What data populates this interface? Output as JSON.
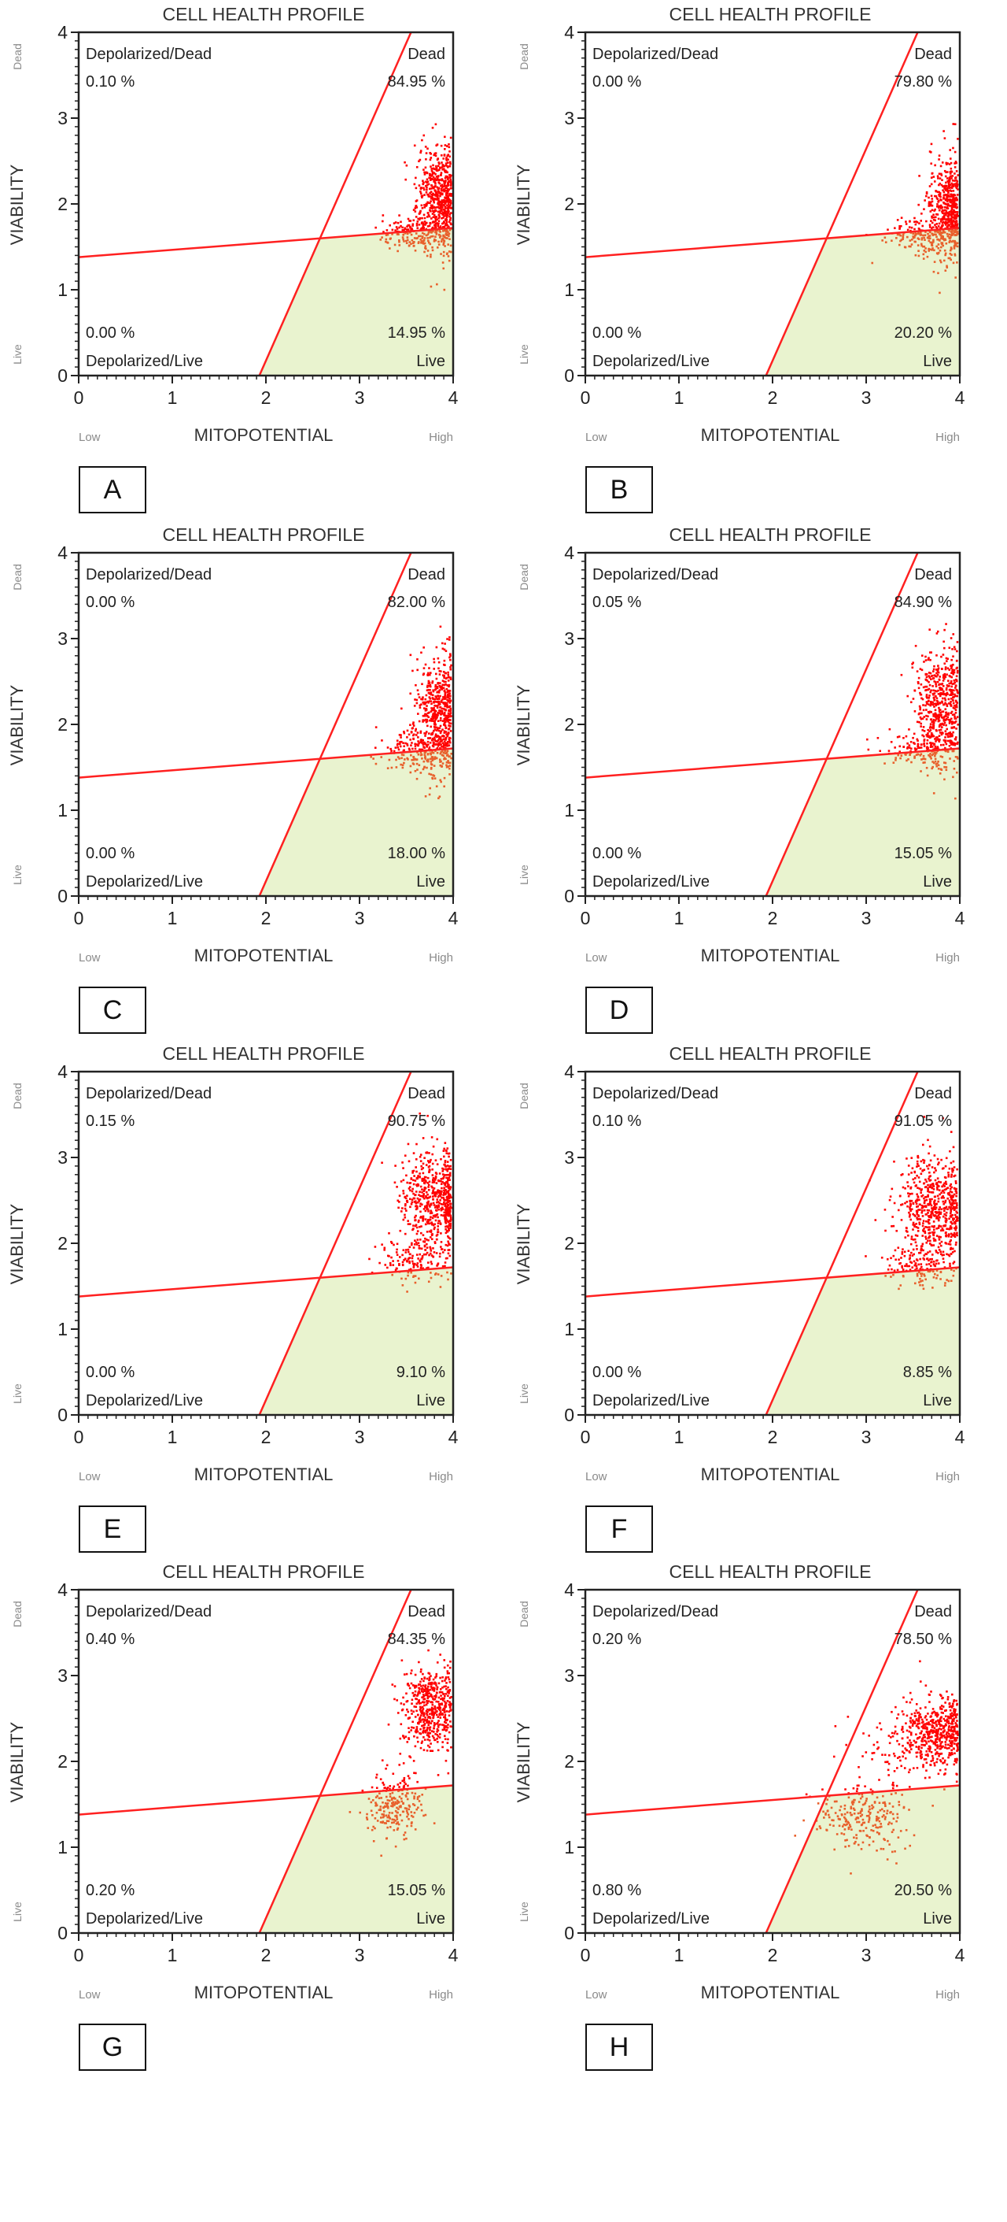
{
  "common": {
    "title": "CELL HEALTH PROFILE",
    "xlabel": "MITOPOTENTIAL",
    "ylabel": "VIABILITY",
    "x_low": "Low",
    "x_high": "High",
    "y_low": "Live",
    "y_high": "Dead",
    "q_tl": "Depolarized/Dead",
    "q_tr": "Dead",
    "q_bl": "Depolarized/Live",
    "q_br": "Live",
    "x_ticks": [
      "0",
      "1",
      "2",
      "3",
      "4"
    ],
    "y_ticks": [
      "0",
      "1",
      "2",
      "3",
      "4"
    ]
  },
  "chart_data": [
    {
      "panel": "A",
      "type": "scatter",
      "xlim": [
        0,
        4
      ],
      "ylim": [
        0,
        4
      ],
      "depolarized_dead": "0.10 %",
      "dead": "84.95 %",
      "depolarized_live": "0.00 %",
      "live": "14.95 %",
      "clusters": [
        {
          "x": 3.85,
          "y": 2.05,
          "sx": 0.12,
          "sy": 0.3,
          "n": 600
        },
        {
          "x": 3.6,
          "y": 1.65,
          "sx": 0.2,
          "sy": 0.1,
          "n": 160
        }
      ]
    },
    {
      "panel": "B",
      "type": "scatter",
      "xlim": [
        0,
        4
      ],
      "ylim": [
        0,
        4
      ],
      "depolarized_dead": "0.00 %",
      "dead": "79.80 %",
      "depolarized_live": "0.00 %",
      "live": "20.20 %",
      "clusters": [
        {
          "x": 3.87,
          "y": 1.95,
          "sx": 0.1,
          "sy": 0.3,
          "n": 500
        },
        {
          "x": 3.65,
          "y": 1.65,
          "sx": 0.2,
          "sy": 0.12,
          "n": 180
        }
      ]
    },
    {
      "panel": "C",
      "type": "scatter",
      "xlim": [
        0,
        4
      ],
      "ylim": [
        0,
        4
      ],
      "depolarized_dead": "0.00 %",
      "dead": "82.00 %",
      "depolarized_live": "0.00 %",
      "live": "18.00 %",
      "clusters": [
        {
          "x": 3.85,
          "y": 2.1,
          "sx": 0.12,
          "sy": 0.35,
          "n": 550
        },
        {
          "x": 3.6,
          "y": 1.7,
          "sx": 0.2,
          "sy": 0.12,
          "n": 170
        }
      ]
    },
    {
      "panel": "D",
      "type": "scatter",
      "xlim": [
        0,
        4
      ],
      "ylim": [
        0,
        4
      ],
      "depolarized_dead": "0.05 %",
      "dead": "84.90 %",
      "depolarized_live": "0.00 %",
      "live": "15.05 %",
      "clusters": [
        {
          "x": 3.8,
          "y": 2.2,
          "sx": 0.15,
          "sy": 0.35,
          "n": 550
        },
        {
          "x": 3.6,
          "y": 1.7,
          "sx": 0.2,
          "sy": 0.1,
          "n": 140
        }
      ]
    },
    {
      "panel": "E",
      "type": "scatter",
      "xlim": [
        0,
        4
      ],
      "ylim": [
        0,
        4
      ],
      "depolarized_dead": "0.15 %",
      "dead": "90.75 %",
      "depolarized_live": "0.00 %",
      "live": "9.10 %",
      "clusters": [
        {
          "x": 3.8,
          "y": 2.5,
          "sx": 0.18,
          "sy": 0.3,
          "n": 600
        },
        {
          "x": 3.6,
          "y": 1.8,
          "sx": 0.2,
          "sy": 0.12,
          "n": 140
        }
      ]
    },
    {
      "panel": "F",
      "type": "scatter",
      "xlim": [
        0,
        4
      ],
      "ylim": [
        0,
        4
      ],
      "depolarized_dead": "0.10 %",
      "dead": "91.05 %",
      "depolarized_live": "0.00 %",
      "live": "8.85 %",
      "clusters": [
        {
          "x": 3.75,
          "y": 2.4,
          "sx": 0.2,
          "sy": 0.3,
          "n": 600
        },
        {
          "x": 3.6,
          "y": 1.75,
          "sx": 0.2,
          "sy": 0.12,
          "n": 140
        }
      ]
    },
    {
      "panel": "G",
      "type": "scatter",
      "xlim": [
        0,
        4
      ],
      "ylim": [
        0,
        4
      ],
      "depolarized_dead": "0.40 %",
      "dead": "84.35 %",
      "depolarized_live": "0.20 %",
      "live": "15.05 %",
      "clusters": [
        {
          "x": 3.75,
          "y": 2.6,
          "sx": 0.15,
          "sy": 0.25,
          "n": 500
        },
        {
          "x": 3.35,
          "y": 1.5,
          "sx": 0.15,
          "sy": 0.2,
          "n": 230
        }
      ]
    },
    {
      "panel": "H",
      "type": "scatter",
      "xlim": [
        0,
        4
      ],
      "ylim": [
        0,
        4
      ],
      "depolarized_dead": "0.20 %",
      "dead": "78.50 %",
      "depolarized_live": "0.80 %",
      "live": "20.50 %",
      "clusters": [
        {
          "x": 3.75,
          "y": 2.35,
          "sx": 0.2,
          "sy": 0.2,
          "n": 500
        },
        {
          "x": 2.95,
          "y": 1.35,
          "sx": 0.25,
          "sy": 0.2,
          "n": 230
        },
        {
          "x": 3.3,
          "y": 2.0,
          "sx": 0.3,
          "sy": 0.3,
          "n": 90
        }
      ]
    }
  ],
  "gates": {
    "horizontal": {
      "x0": 0,
      "y0": 1.38,
      "x1": 4,
      "y1": 1.72
    },
    "diagonal": {
      "x0": 1.93,
      "y0": 0,
      "x1": 3.55,
      "y1": 4
    }
  },
  "colors": {
    "gate": "#ff2020",
    "dead_points": "#ff0000",
    "live_points": "#e8602c",
    "live_region": "#e9f3cf",
    "axis": "#222222",
    "muted": "#8a8a8a"
  }
}
